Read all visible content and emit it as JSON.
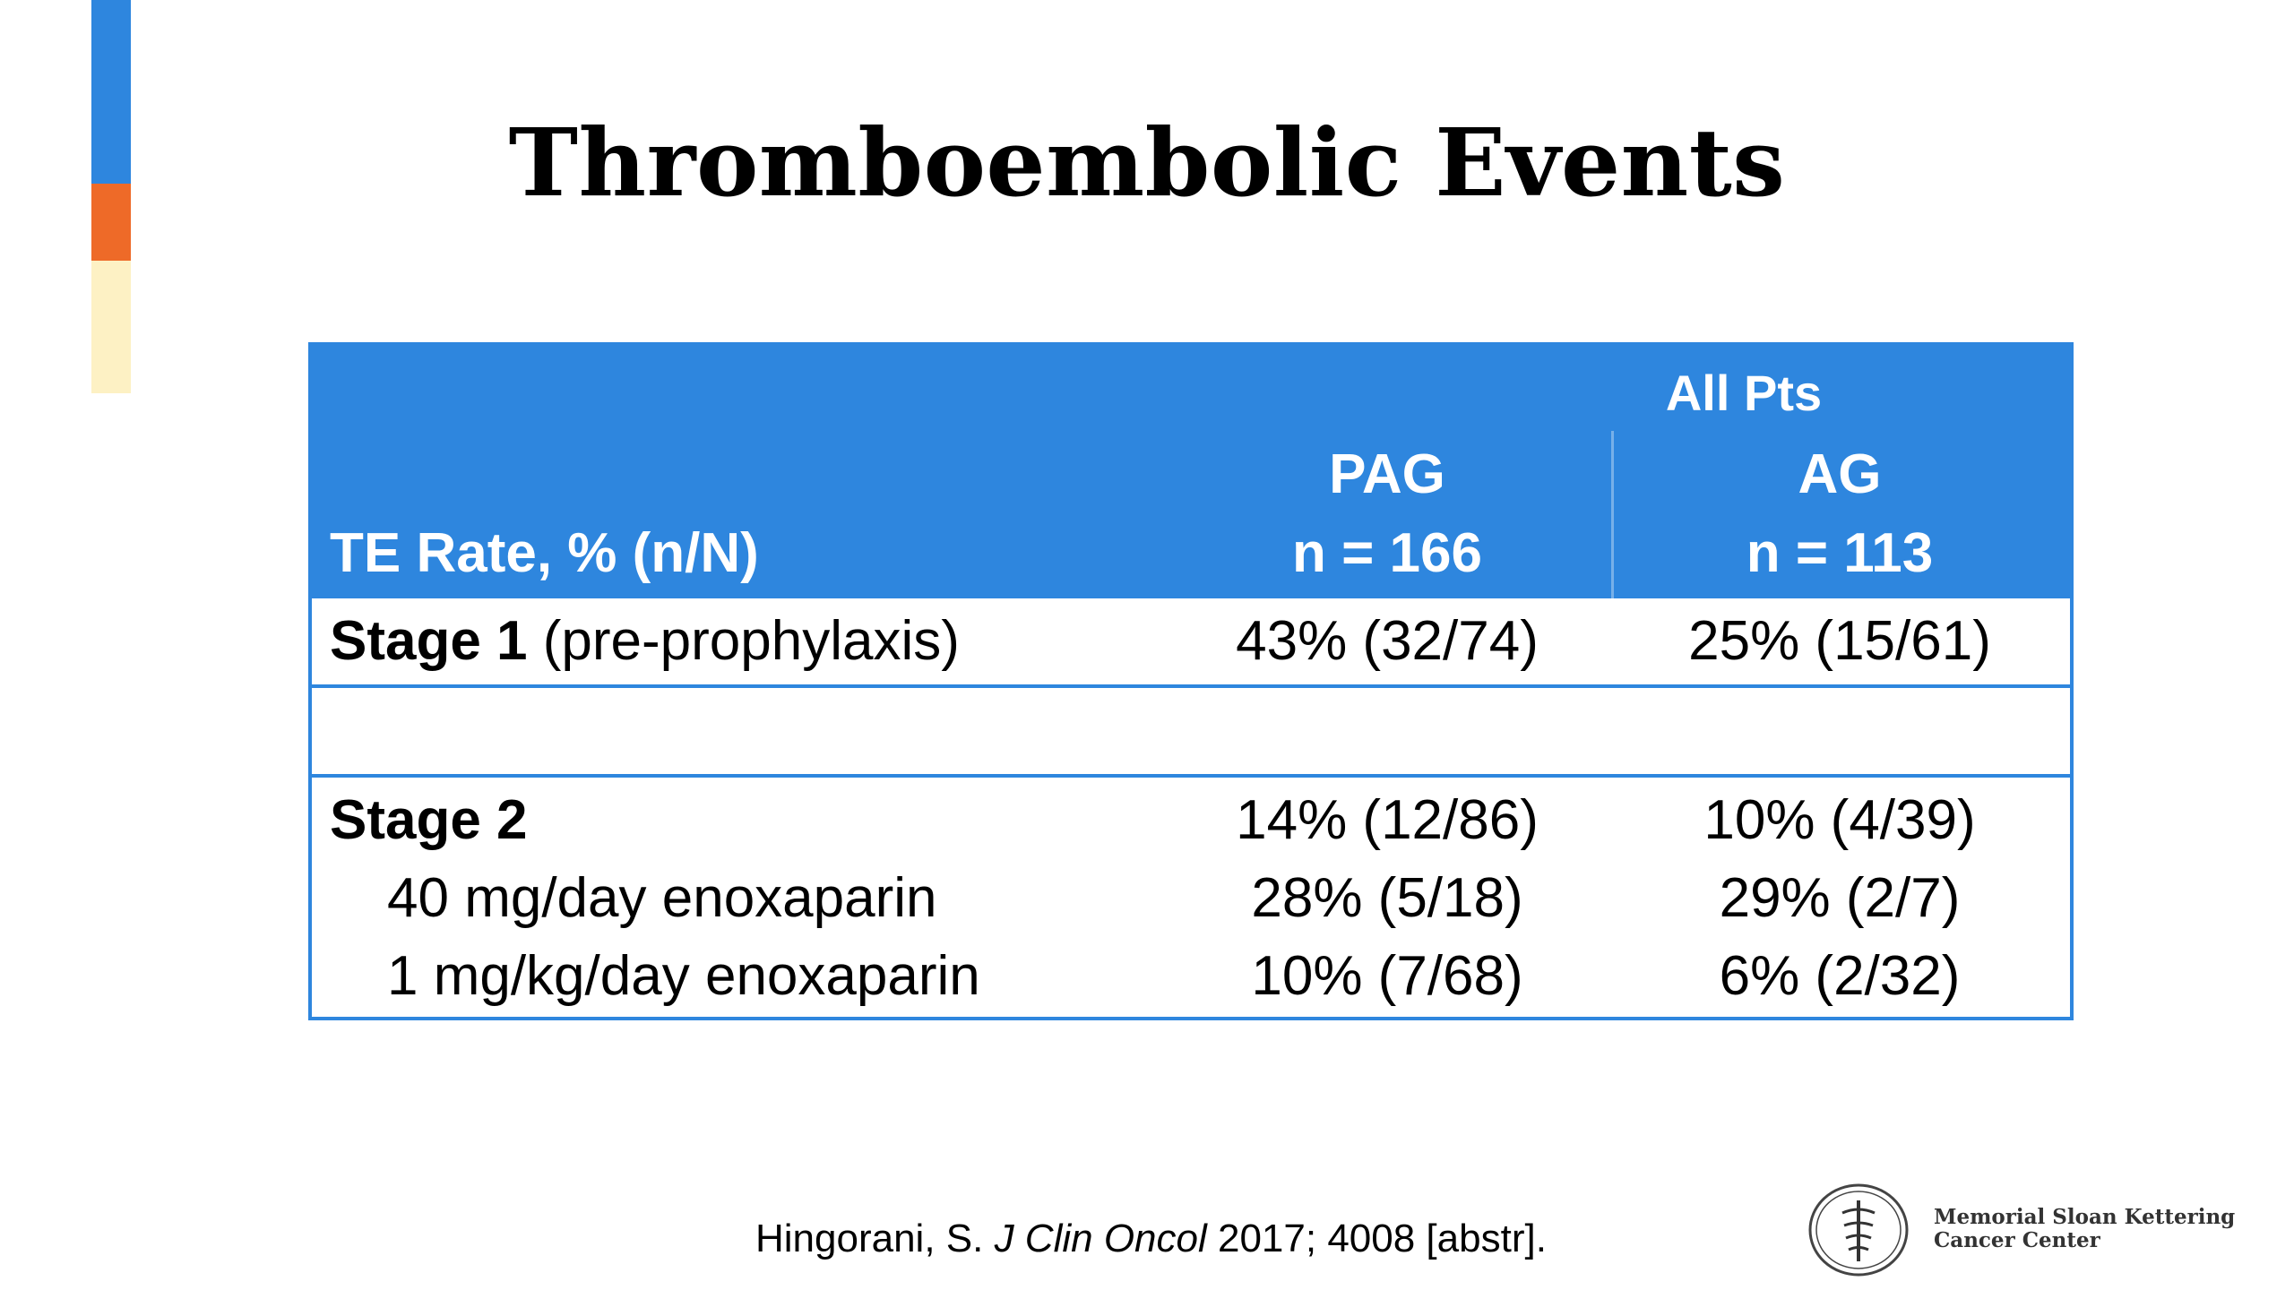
{
  "colors": {
    "accent_blue": "#2e86de",
    "accent_orange": "#ee6a28",
    "accent_yellow": "#fdf1c4",
    "header_bg": "#2e86de",
    "header_text": "#ffffff",
    "border": "#2e86de"
  },
  "slide": {
    "title": "Thromboembolic Events"
  },
  "table": {
    "group_header": "All Pts",
    "columns": [
      {
        "name": "PAG",
        "n": "n = 166"
      },
      {
        "name": "AG",
        "n": "n = 113"
      }
    ],
    "row_header_label": "TE Rate, % (n/N)",
    "stage1": {
      "label_bold": "Stage 1",
      "label_rest": " (pre-prophylaxis)",
      "pag": "43% (32/74)",
      "ag": "25% (15/61)"
    },
    "stage2": {
      "label_bold": "Stage 2",
      "pag": "14% (12/86)",
      "ag": "10% (4/39)",
      "sub_rows": [
        {
          "label": "40 mg/day enoxaparin",
          "pag": "28% (5/18)",
          "ag": "29% (2/7)"
        },
        {
          "label": "1 mg/kg/day enoxaparin",
          "pag": "10% (7/68)",
          "ag": "6% (2/32)"
        }
      ]
    }
  },
  "citation": {
    "author": "Hingorani, S. ",
    "journal": "J Clin Oncol",
    "rest": " 2017; 4008 [abstr]."
  },
  "logo": {
    "icon": "msk-caduceus-icon",
    "line1": "Memorial Sloan Kettering",
    "line2": "Cancer Center"
  }
}
